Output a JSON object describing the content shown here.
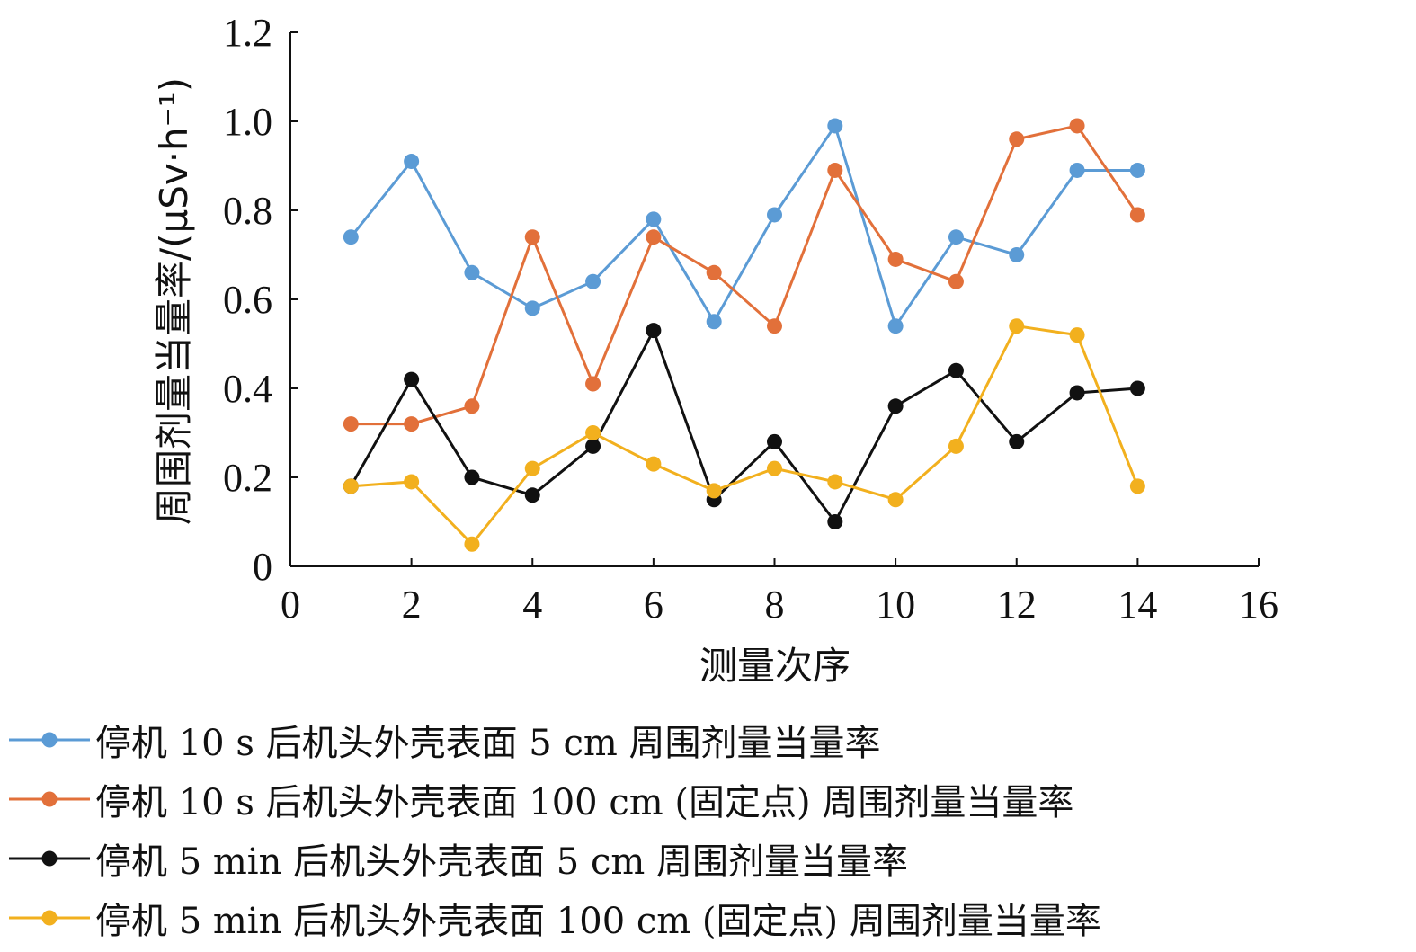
{
  "chart_data": {
    "type": "line",
    "xlabel": "测量次序",
    "ylabel": "周围剂量当量率/(μSv·h⁻¹)",
    "xlim": [
      0,
      16
    ],
    "ylim": [
      0,
      1.2
    ],
    "x_ticks": [
      "0",
      "2",
      "4",
      "6",
      "8",
      "10",
      "12",
      "14",
      "16"
    ],
    "y_ticks": [
      "0",
      "0.2",
      "0.4",
      "0.6",
      "0.8",
      "1.0",
      "1.2"
    ],
    "grid": false,
    "legend_position": "bottom",
    "x": [
      1,
      2,
      3,
      4,
      5,
      6,
      7,
      8,
      9,
      10,
      11,
      12,
      13,
      14
    ],
    "series": [
      {
        "name": "停机 10 s 后机头外壳表面 5 cm 周围剂量当量率",
        "color": "#5B9BD5",
        "values": [
          0.74,
          0.91,
          0.66,
          0.58,
          0.64,
          0.78,
          0.55,
          0.79,
          0.99,
          0.54,
          0.74,
          0.7,
          0.89,
          0.89
        ]
      },
      {
        "name": "停机 10 s 后机头外壳表面 100 cm (固定点) 周围剂量当量率",
        "color": "#E2703A",
        "values": [
          0.32,
          0.32,
          0.36,
          0.74,
          0.41,
          0.74,
          0.66,
          0.54,
          0.89,
          0.69,
          0.64,
          0.96,
          0.99,
          0.79
        ]
      },
      {
        "name": "停机 5 min 后机头外壳表面 5 cm 周围剂量当量率",
        "color": "#111111",
        "values": [
          0.18,
          0.42,
          0.2,
          0.16,
          0.27,
          0.53,
          0.15,
          0.28,
          0.1,
          0.36,
          0.44,
          0.28,
          0.39,
          0.4
        ]
      },
      {
        "name": "停机 5 min 后机头外壳表面 100 cm (固定点) 周围剂量当量率",
        "color": "#F2B01E",
        "values": [
          0.18,
          0.19,
          0.05,
          0.22,
          0.3,
          0.23,
          0.17,
          0.22,
          0.19,
          0.15,
          0.27,
          0.54,
          0.52,
          0.18
        ]
      }
    ]
  }
}
